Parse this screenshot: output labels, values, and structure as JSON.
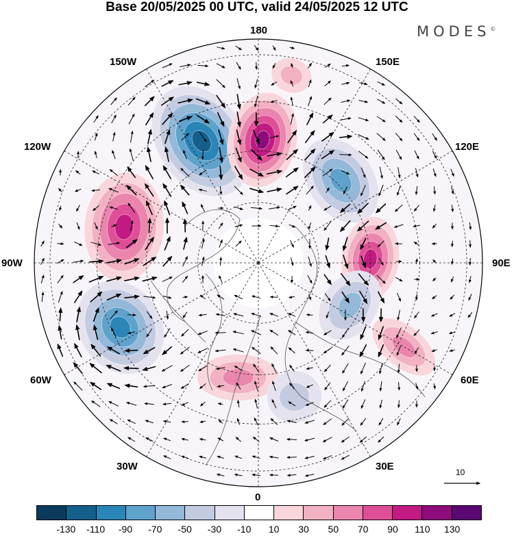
{
  "title": "Base 20/05/2025 00 UTC, valid 24/05/2025 12 UTC",
  "brand": "MODES",
  "brand_mark": "©",
  "longitude_labels": {
    "lon_180": "180",
    "lon_150e": "150E",
    "lon_120e": "120E",
    "lon_90e": "90E",
    "lon_60e": "60E",
    "lon_30e": "30E",
    "lon_0": "0",
    "lon_30w": "30W",
    "lon_60w": "60W",
    "lon_90w": "90W",
    "lon_120w": "120W",
    "lon_150w": "150W"
  },
  "reference_vector": {
    "label": "10"
  },
  "colorbar": {
    "colors": [
      "#0b3a5c",
      "#155f8c",
      "#2b86b8",
      "#5fa2cc",
      "#94b8d8",
      "#c3cbe1",
      "#e4e2ee",
      "#ffffff",
      "#f8d6dc",
      "#f2b2c3",
      "#ea86ad",
      "#df4f97",
      "#c11b83",
      "#8e0b7c",
      "#5b0872"
    ],
    "ticks": [
      "-130",
      "-110",
      "-90",
      "-70",
      "-50",
      "-30",
      "-10",
      "10",
      "30",
      "50",
      "70",
      "90",
      "110",
      "130"
    ]
  },
  "map": {
    "type": "polar stereographic",
    "anomalies": [
      {
        "lon": -155,
        "value": -105
      },
      {
        "lon": 178,
        "value": 115
      },
      {
        "lon": 135,
        "value": -60
      },
      {
        "lon": 92,
        "value": 80
      },
      {
        "lon": 65,
        "value": -55
      },
      {
        "lon": 60,
        "value": 40
      },
      {
        "lon": -105,
        "value": 85
      },
      {
        "lon": -65,
        "value": -95
      },
      {
        "lon": -10,
        "value": 45
      },
      {
        "lon": 15,
        "value": -35
      },
      {
        "lon": 170,
        "value": 20
      }
    ]
  }
}
